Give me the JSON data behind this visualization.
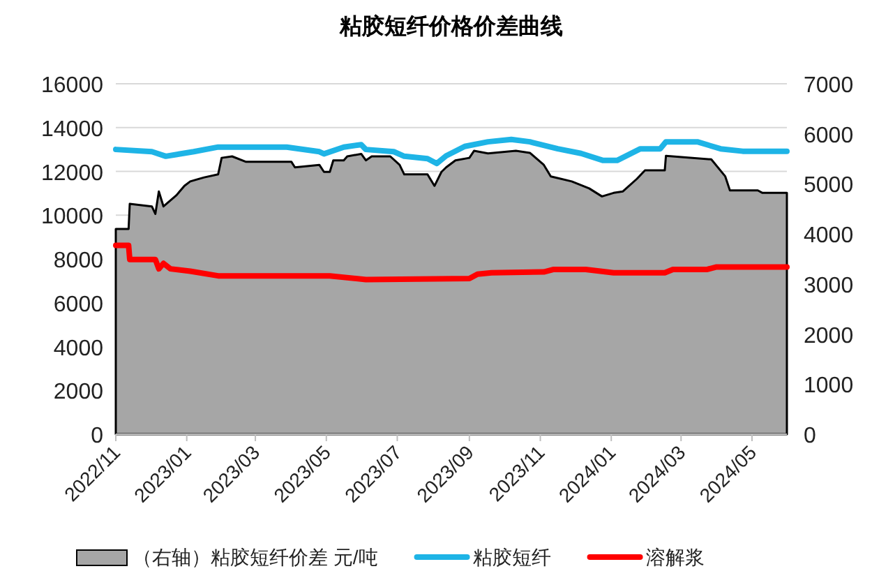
{
  "chart_data": {
    "type": "line",
    "title": "粘胶短纤价格价差曲线",
    "xlim": [
      "2022-11-01",
      "2024-05-31"
    ],
    "xticks": [
      {
        "value": "2022-11",
        "label": "2022/11"
      },
      {
        "value": "2023-01",
        "label": "2023/01"
      },
      {
        "value": "2023-03",
        "label": "2023/03"
      },
      {
        "value": "2023-05",
        "label": "2023/05"
      },
      {
        "value": "2023-07",
        "label": "2023/07"
      },
      {
        "value": "2023-09",
        "label": "2023/09"
      },
      {
        "value": "2023-11",
        "label": "2023/11"
      },
      {
        "value": "2024-01",
        "label": "2024/01"
      },
      {
        "value": "2024-03",
        "label": "2024/03"
      },
      {
        "value": "2024-05",
        "label": "2024/05"
      }
    ],
    "ylim": [
      0,
      16000
    ],
    "yticks": [
      0,
      2000,
      4000,
      6000,
      8000,
      10000,
      12000,
      14000,
      16000
    ],
    "y2lim": [
      0,
      7000
    ],
    "y2ticks": [
      0,
      1000,
      2000,
      3000,
      4000,
      5000,
      6000,
      7000
    ],
    "grid": "y",
    "legend": "bottom",
    "series": [
      {
        "name": "（右轴）粘胶短纤价差 元/吨",
        "type": "area",
        "axis": "y2",
        "color": "#a6a6a6",
        "x": [
          "2022-11-01",
          "2022-11-12",
          "2022-11-13",
          "2022-12-02",
          "2022-12-05",
          "2022-12-08",
          "2022-12-12",
          "2022-12-23",
          "2022-12-30",
          "2023-01-04",
          "2023-01-16",
          "2023-01-28",
          "2023-01-31",
          "2023-02-09",
          "2023-02-21",
          "2023-04-01",
          "2023-04-04",
          "2023-04-25",
          "2023-04-29",
          "2023-05-04",
          "2023-05-07",
          "2023-05-16",
          "2023-05-19",
          "2023-05-31",
          "2023-06-04",
          "2023-06-09",
          "2023-06-25",
          "2023-07-03",
          "2023-07-07",
          "2023-07-27",
          "2023-08-02",
          "2023-08-08",
          "2023-08-12",
          "2023-08-20",
          "2023-09-01",
          "2023-09-05",
          "2023-09-17",
          "2023-10-11",
          "2023-10-23",
          "2023-11-04",
          "2023-11-10",
          "2023-11-28",
          "2023-12-13",
          "2023-12-24",
          "2024-01-03",
          "2024-01-11",
          "2024-01-23",
          "2024-01-30",
          "2024-02-16",
          "2024-02-17",
          "2024-03-27",
          "2024-04-08",
          "2024-04-12",
          "2024-05-06",
          "2024-05-10",
          "2024-05-31"
        ],
        "values": [
          4100,
          4100,
          4600,
          4550,
          4400,
          4850,
          4550,
          4770,
          4960,
          5050,
          5130,
          5190,
          5520,
          5550,
          5440,
          5440,
          5330,
          5380,
          5240,
          5240,
          5470,
          5470,
          5550,
          5600,
          5470,
          5550,
          5550,
          5380,
          5190,
          5190,
          4960,
          5240,
          5330,
          5470,
          5520,
          5660,
          5610,
          5660,
          5620,
          5380,
          5150,
          5050,
          4910,
          4750,
          4820,
          4850,
          5100,
          5270,
          5270,
          5560,
          5490,
          5150,
          4870,
          4870,
          4820,
          4820
        ]
      },
      {
        "name": "粘胶短纤",
        "color": "#1eb4e6",
        "x": [
          "2022-11-01",
          "2022-12-02",
          "2022-12-14",
          "2023-01-07",
          "2023-01-28",
          "2023-03-28",
          "2023-04-25",
          "2023-04-29",
          "2023-05-16",
          "2023-05-31",
          "2023-06-04",
          "2023-06-28",
          "2023-07-07",
          "2023-07-27",
          "2023-08-04",
          "2023-08-12",
          "2023-08-28",
          "2023-09-17",
          "2023-10-07",
          "2023-10-23",
          "2023-11-16",
          "2023-12-06",
          "2023-12-25",
          "2024-01-06",
          "2024-01-26",
          "2024-02-12",
          "2024-02-17",
          "2024-03-15",
          "2024-04-04",
          "2024-04-23",
          "2024-05-31"
        ],
        "values": [
          13000,
          12900,
          12690,
          12900,
          13110,
          13110,
          12900,
          12800,
          13110,
          13220,
          13000,
          12900,
          12690,
          12580,
          12360,
          12710,
          13140,
          13350,
          13460,
          13350,
          13030,
          12820,
          12500,
          12500,
          13030,
          13030,
          13350,
          13350,
          13030,
          12920,
          12920
        ]
      },
      {
        "name": "溶解浆",
        "color": "#ff0000",
        "x": [
          "2022-11-01",
          "2022-11-12",
          "2022-11-13",
          "2022-12-05",
          "2022-12-08",
          "2022-12-12",
          "2022-12-18",
          "2023-01-04",
          "2023-01-28",
          "2023-05-04",
          "2023-06-04",
          "2023-09-01",
          "2023-09-08",
          "2023-09-20",
          "2023-11-04",
          "2023-11-12",
          "2023-12-10",
          "2024-01-03",
          "2024-02-16",
          "2024-02-23",
          "2024-03-23",
          "2024-03-31",
          "2024-05-31"
        ],
        "values": [
          8620,
          8620,
          7980,
          7980,
          7550,
          7800,
          7550,
          7440,
          7230,
          7230,
          7060,
          7110,
          7310,
          7370,
          7410,
          7520,
          7520,
          7370,
          7370,
          7520,
          7520,
          7630,
          7630
        ]
      }
    ]
  }
}
